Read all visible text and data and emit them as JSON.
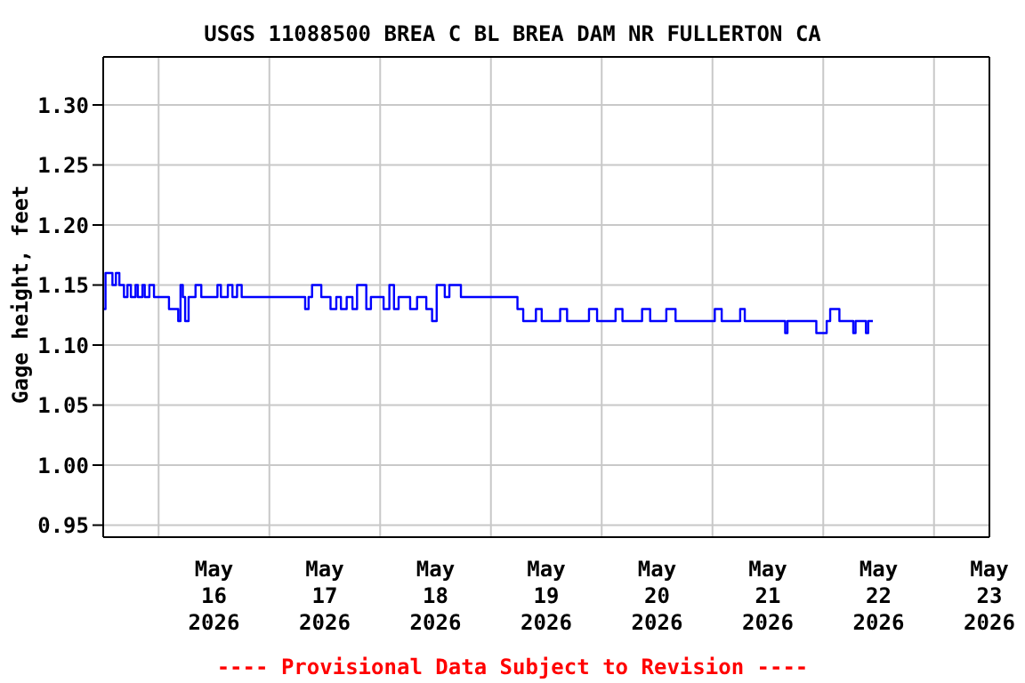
{
  "chart_data": {
    "type": "step",
    "title": "USGS 11088500 BREA C BL BREA DAM NR FULLERTON CA",
    "ylabel": "Gage height, feet",
    "annotations": [
      "---- Provisional Data Subject to Revision ----"
    ],
    "xlim": [
      "2026-05-15T12:00",
      "2026-05-23T12:00"
    ],
    "xticks": [
      {
        "value": "2026-05-16T00:00",
        "label": null
      },
      {
        "value": "2026-05-16T12:00",
        "label": "May\n16\n2026"
      },
      {
        "value": "2026-05-17T00:00",
        "label": null
      },
      {
        "value": "2026-05-17T12:00",
        "label": "May\n17\n2026"
      },
      {
        "value": "2026-05-18T00:00",
        "label": null
      },
      {
        "value": "2026-05-18T12:00",
        "label": "May\n18\n2026"
      },
      {
        "value": "2026-05-19T00:00",
        "label": null
      },
      {
        "value": "2026-05-19T12:00",
        "label": "May\n19\n2026"
      },
      {
        "value": "2026-05-20T00:00",
        "label": null
      },
      {
        "value": "2026-05-20T12:00",
        "label": "May\n20\n2026"
      },
      {
        "value": "2026-05-21T00:00",
        "label": null
      },
      {
        "value": "2026-05-21T12:00",
        "label": "May\n21\n2026"
      },
      {
        "value": "2026-05-22T00:00",
        "label": null
      },
      {
        "value": "2026-05-22T12:00",
        "label": "May\n22\n2026"
      },
      {
        "value": "2026-05-23T00:00",
        "label": null
      },
      {
        "value": "2026-05-23T12:00",
        "label": "May\n23\n2026"
      }
    ],
    "ylim": [
      0.94,
      1.34
    ],
    "yticks": [
      {
        "value": 0.95,
        "label": "0.95"
      },
      {
        "value": 1.0,
        "label": "1.00"
      },
      {
        "value": 1.05,
        "label": "1.05"
      },
      {
        "value": 1.1,
        "label": "1.10"
      },
      {
        "value": 1.15,
        "label": "1.15"
      },
      {
        "value": 1.2,
        "label": "1.20"
      },
      {
        "value": 1.25,
        "label": "1.25"
      },
      {
        "value": 1.3,
        "label": "1.30"
      }
    ],
    "grid": true,
    "marker": "none",
    "line_style": "solid",
    "series": [
      {
        "color": "#0000ff",
        "x": [
          "2026-05-15T12:00",
          "2026-05-15T12:30",
          "2026-05-15T14:00",
          "2026-05-15T14:45",
          "2026-05-15T15:30",
          "2026-05-15T16:30",
          "2026-05-15T17:15",
          "2026-05-15T18:00",
          "2026-05-15T19:00",
          "2026-05-15T19:30",
          "2026-05-15T20:30",
          "2026-05-15T21:00",
          "2026-05-15T22:00",
          "2026-05-15T23:00",
          "2026-05-16T00:00",
          "2026-05-16T01:00",
          "2026-05-16T02:15",
          "2026-05-16T04:15",
          "2026-05-16T04:45",
          "2026-05-16T05:15",
          "2026-05-16T05:45",
          "2026-05-16T06:30",
          "2026-05-16T08:00",
          "2026-05-16T09:15",
          "2026-05-16T12:45",
          "2026-05-16T13:30",
          "2026-05-16T15:00",
          "2026-05-16T16:00",
          "2026-05-16T17:00",
          "2026-05-16T18:00",
          "2026-05-16T19:30",
          "2026-05-17T07:45",
          "2026-05-17T08:30",
          "2026-05-17T09:15",
          "2026-05-17T11:15",
          "2026-05-17T13:15",
          "2026-05-17T14:30",
          "2026-05-17T15:30",
          "2026-05-17T16:45",
          "2026-05-17T18:00",
          "2026-05-17T19:00",
          "2026-05-17T21:00",
          "2026-05-17T22:00",
          "2026-05-18T00:45",
          "2026-05-18T02:00",
          "2026-05-18T03:00",
          "2026-05-18T04:00",
          "2026-05-18T06:30",
          "2026-05-18T08:00",
          "2026-05-18T10:00",
          "2026-05-18T11:15",
          "2026-05-18T12:15",
          "2026-05-18T14:00",
          "2026-05-18T15:00",
          "2026-05-18T17:30",
          "2026-05-18T21:15",
          "2026-05-19T05:45",
          "2026-05-19T07:00",
          "2026-05-19T09:45",
          "2026-05-19T11:00",
          "2026-05-19T15:00",
          "2026-05-19T16:30",
          "2026-05-19T21:15",
          "2026-05-19T23:00",
          "2026-05-20T03:00",
          "2026-05-20T04:30",
          "2026-05-20T08:45",
          "2026-05-20T10:30",
          "2026-05-20T14:00",
          "2026-05-20T16:00",
          "2026-05-21T00:30",
          "2026-05-21T02:00",
          "2026-05-21T06:00",
          "2026-05-21T07:00",
          "2026-05-21T12:00",
          "2026-05-21T15:45",
          "2026-05-21T16:15",
          "2026-05-21T22:30",
          "2026-05-22T00:45",
          "2026-05-22T01:30",
          "2026-05-22T03:30",
          "2026-05-22T06:30",
          "2026-05-22T07:00",
          "2026-05-22T09:15",
          "2026-05-22T09:45",
          "2026-05-22T10:45"
        ],
        "values": [
          1.13,
          1.16,
          1.15,
          1.16,
          1.15,
          1.14,
          1.15,
          1.14,
          1.15,
          1.14,
          1.15,
          1.14,
          1.15,
          1.14,
          1.14,
          1.14,
          1.13,
          1.12,
          1.15,
          1.14,
          1.12,
          1.14,
          1.15,
          1.14,
          1.15,
          1.14,
          1.15,
          1.14,
          1.15,
          1.14,
          1.14,
          1.13,
          1.14,
          1.15,
          1.14,
          1.13,
          1.14,
          1.13,
          1.14,
          1.13,
          1.15,
          1.13,
          1.14,
          1.13,
          1.15,
          1.13,
          1.14,
          1.13,
          1.14,
          1.13,
          1.12,
          1.15,
          1.14,
          1.15,
          1.14,
          1.14,
          1.13,
          1.12,
          1.13,
          1.12,
          1.13,
          1.12,
          1.13,
          1.12,
          1.13,
          1.12,
          1.13,
          1.12,
          1.13,
          1.12,
          1.13,
          1.12,
          1.13,
          1.12,
          1.12,
          1.11,
          1.12,
          1.11,
          1.12,
          1.13,
          1.12,
          1.11,
          1.12,
          1.11,
          1.12,
          1.12
        ]
      }
    ]
  }
}
